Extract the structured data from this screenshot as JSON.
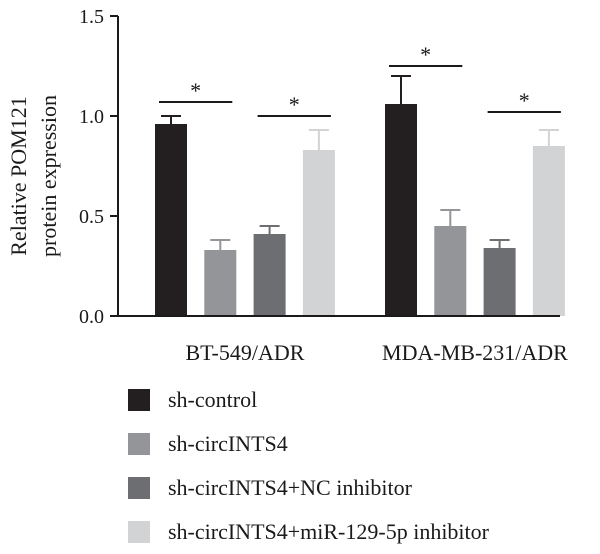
{
  "chart_data": {
    "type": "bar",
    "title": "",
    "xlabel": "",
    "ylabel_lines": [
      "Relative POM121",
      "protein expression"
    ],
    "ylim": [
      0,
      1.5
    ],
    "yticks": [
      "0.0",
      "0.5",
      "1.0",
      "1.5"
    ],
    "categories": [
      "BT-549/ADR",
      "MDA-MB-231/ADR"
    ],
    "series": [
      {
        "name": "sh-control",
        "color": "#231f20",
        "values": [
          0.96,
          1.06
        ],
        "errors": [
          0.04,
          0.14
        ]
      },
      {
        "name": "sh-circINTS4",
        "color": "#939598",
        "values": [
          0.33,
          0.45
        ],
        "errors": [
          0.05,
          0.08
        ]
      },
      {
        "name": "sh-circINTS4+NC inhibitor",
        "color": "#6d6e71",
        "values": [
          0.41,
          0.34
        ],
        "errors": [
          0.04,
          0.04
        ]
      },
      {
        "name": "sh-circINTS4+miR-129-5p inhibitor",
        "color": "#d1d3d4",
        "values": [
          0.83,
          0.85
        ],
        "errors": [
          0.1,
          0.08
        ]
      }
    ],
    "significance": [
      {
        "category": 0,
        "from": 0,
        "to": 1,
        "y": 1.07,
        "label": "*"
      },
      {
        "category": 0,
        "from": 2,
        "to": 3,
        "y": 1.0,
        "label": "*"
      },
      {
        "category": 1,
        "from": 0,
        "to": 1,
        "y": 1.25,
        "label": "*"
      },
      {
        "category": 1,
        "from": 2,
        "to": 3,
        "y": 1.02,
        "label": "*"
      }
    ],
    "legend_position": "bottom-left"
  }
}
